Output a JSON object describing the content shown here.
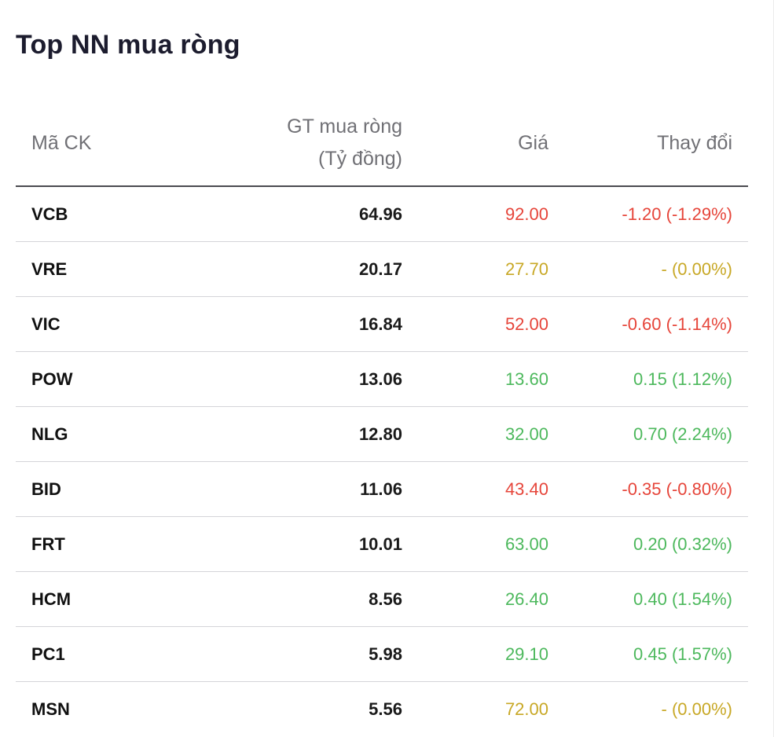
{
  "title": "Top NN mua ròng",
  "headers": {
    "symbol": "Mã CK",
    "value_line1": "GT mua ròng",
    "value_line2": "(Tỷ đồng)",
    "price": "Giá",
    "change": "Thay đổi"
  },
  "colors": {
    "down": "#e6453a",
    "flat": "#c8a826",
    "up": "#4cb85c"
  },
  "rows": [
    {
      "symbol": "VCB",
      "value": "64.96",
      "price": "92.00",
      "change": "-1.20 (-1.29%)",
      "trend": "down"
    },
    {
      "symbol": "VRE",
      "value": "20.17",
      "price": "27.70",
      "change": "- (0.00%)",
      "trend": "flat"
    },
    {
      "symbol": "VIC",
      "value": "16.84",
      "price": "52.00",
      "change": "-0.60 (-1.14%)",
      "trend": "down"
    },
    {
      "symbol": "POW",
      "value": "13.06",
      "price": "13.60",
      "change": "0.15 (1.12%)",
      "trend": "up"
    },
    {
      "symbol": "NLG",
      "value": "12.80",
      "price": "32.00",
      "change": "0.70 (2.24%)",
      "trend": "up"
    },
    {
      "symbol": "BID",
      "value": "11.06",
      "price": "43.40",
      "change": "-0.35 (-0.80%)",
      "trend": "down"
    },
    {
      "symbol": "FRT",
      "value": "10.01",
      "price": "63.00",
      "change": "0.20 (0.32%)",
      "trend": "up"
    },
    {
      "symbol": "HCM",
      "value": "8.56",
      "price": "26.40",
      "change": "0.40 (1.54%)",
      "trend": "up"
    },
    {
      "symbol": "PC1",
      "value": "5.98",
      "price": "29.10",
      "change": "0.45 (1.57%)",
      "trend": "up"
    },
    {
      "symbol": "MSN",
      "value": "5.56",
      "price": "72.00",
      "change": "- (0.00%)",
      "trend": "flat"
    }
  ]
}
